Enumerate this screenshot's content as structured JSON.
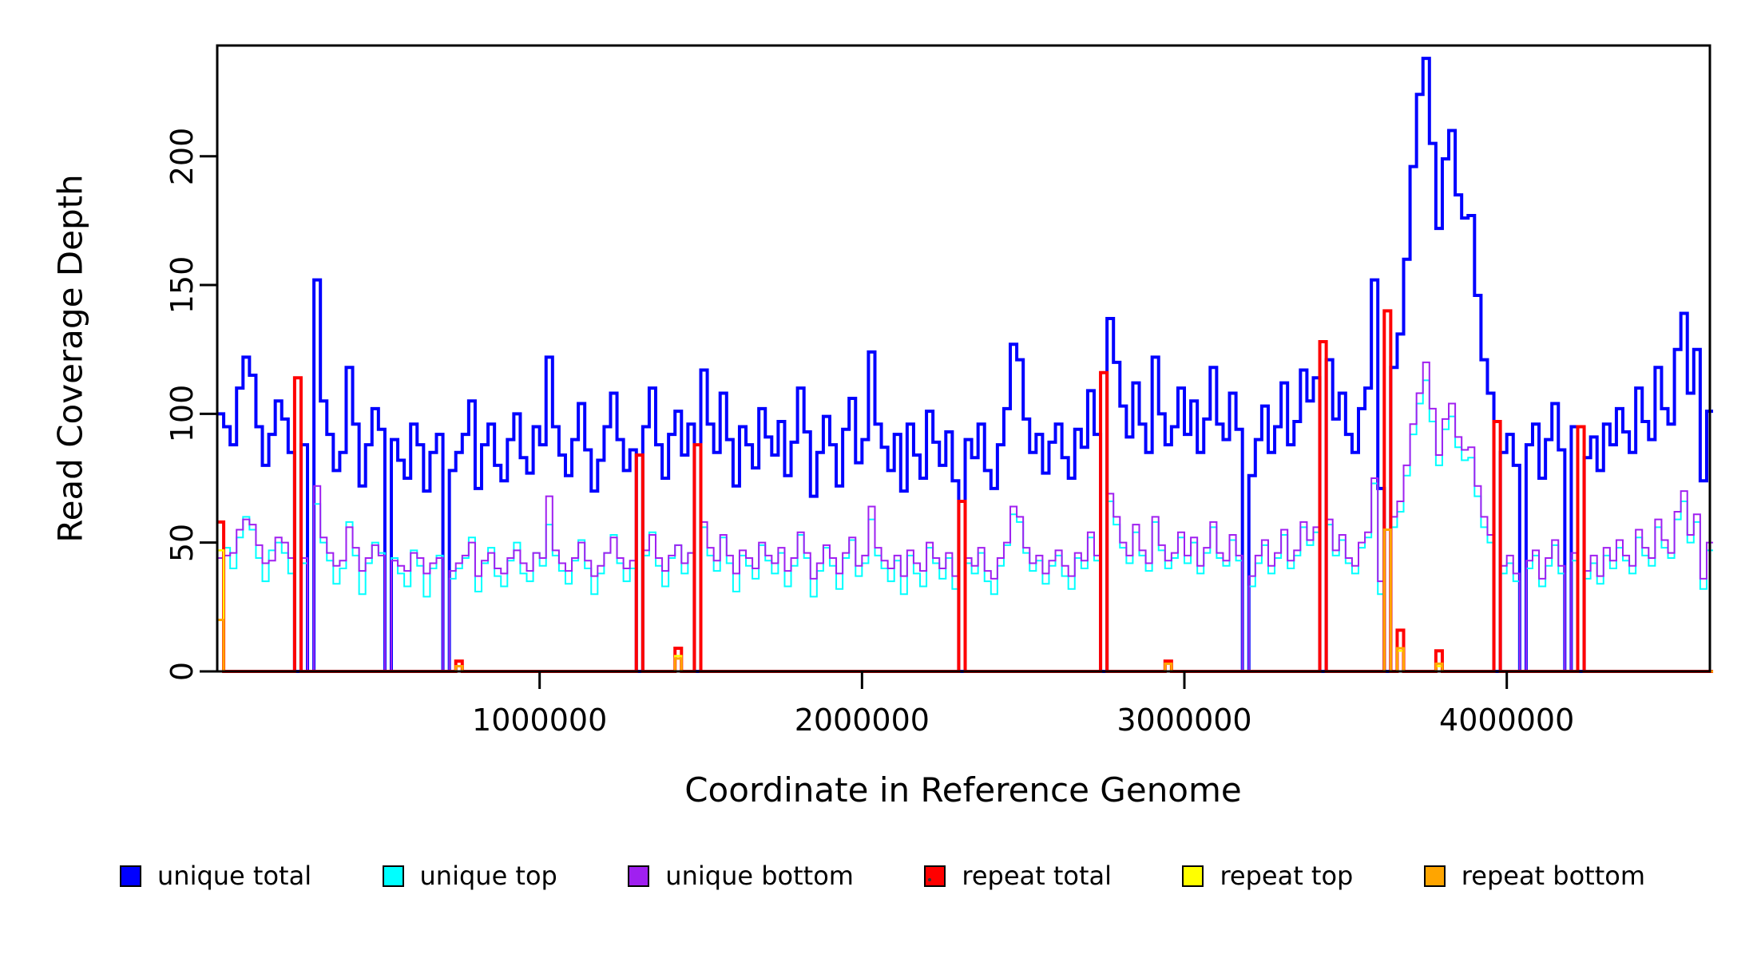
{
  "figure": {
    "background": "#FFFFFF",
    "xlabel": "Coordinate in Reference Genome",
    "ylabel": "Read Coverage Depth",
    "frame_color": "#000000",
    "x_ticks": [
      {
        "value": 1000000,
        "label": "1000000"
      },
      {
        "value": 2000000,
        "label": "2000000"
      },
      {
        "value": 3000000,
        "label": "3000000"
      },
      {
        "value": 4000000,
        "label": "4000000"
      }
    ],
    "y_ticks": [
      {
        "value": 0,
        "label": "0"
      },
      {
        "value": 50,
        "label": "50"
      },
      {
        "value": 100,
        "label": "100"
      },
      {
        "value": 150,
        "label": "150"
      },
      {
        "value": 200,
        "label": "200"
      }
    ],
    "legend": [
      {
        "label": "unique total",
        "color": "#0000FF"
      },
      {
        "label": "unique top",
        "color": "#00FFFF"
      },
      {
        "label": "unique bottom",
        "color": "#A020F0"
      },
      {
        "label": "repeat total",
        "color": "#FF0000"
      },
      {
        "label": "repeat top",
        "color": "#FFFF00"
      },
      {
        "label": "repeat bottom",
        "color": "#FFA500"
      }
    ]
  },
  "chart_data": {
    "type": "line",
    "step": true,
    "title": "",
    "xlabel": "Coordinate in Reference Genome",
    "ylabel": "Read Coverage Depth",
    "xlim": [
      0,
      4630000
    ],
    "ylim": [
      0,
      243
    ],
    "grid": false,
    "legend_position": "bottom",
    "x_start": 0,
    "bin_size": 20000,
    "n_bins": 232,
    "series": [
      {
        "name": "unique total",
        "color": "#0000FF",
        "width": 4,
        "values": [
          100,
          95,
          88,
          110,
          122,
          115,
          95,
          80,
          92,
          105,
          98,
          85,
          0,
          88,
          0,
          152,
          105,
          92,
          78,
          85,
          118,
          96,
          72,
          88,
          102,
          94,
          0,
          90,
          82,
          75,
          96,
          88,
          70,
          85,
          92,
          0,
          78,
          85,
          92,
          105,
          71,
          88,
          96,
          80,
          74,
          90,
          100,
          83,
          77,
          95,
          88,
          122,
          95,
          84,
          76,
          90,
          104,
          86,
          70,
          82,
          95,
          108,
          90,
          78,
          86,
          0,
          95,
          110,
          88,
          75,
          92,
          101,
          84,
          96,
          0,
          117,
          96,
          85,
          108,
          90,
          72,
          95,
          88,
          79,
          102,
          91,
          84,
          97,
          76,
          89,
          110,
          93,
          68,
          85,
          99,
          88,
          72,
          94,
          106,
          81,
          90,
          124,
          96,
          87,
          78,
          92,
          70,
          96,
          84,
          75,
          101,
          89,
          80,
          93,
          74,
          0,
          90,
          83,
          96,
          78,
          71,
          88,
          102,
          127,
          121,
          98,
          85,
          92,
          77,
          89,
          96,
          83,
          75,
          94,
          87,
          109,
          92,
          0,
          137,
          120,
          103,
          91,
          112,
          96,
          85,
          122,
          100,
          88,
          95,
          110,
          92,
          105,
          85,
          98,
          118,
          96,
          90,
          108,
          94,
          0,
          76,
          90,
          103,
          85,
          95,
          112,
          88,
          97,
          117,
          105,
          114,
          0,
          121,
          98,
          108,
          92,
          85,
          102,
          110,
          152,
          71,
          0,
          118,
          131,
          160,
          196,
          224,
          238,
          205,
          172,
          199,
          210,
          185,
          176,
          177,
          146,
          121,
          108,
          0,
          85,
          92,
          80,
          0,
          88,
          96,
          75,
          90,
          104,
          86,
          0,
          95,
          0,
          83,
          91,
          78,
          96,
          88,
          102,
          93,
          85,
          110,
          97,
          90,
          118,
          102,
          96,
          125,
          139,
          108,
          125,
          74,
          101
        ]
      },
      {
        "name": "unique top",
        "color": "#00FFFF",
        "width": 2,
        "values": [
          20,
          48,
          40,
          52,
          60,
          55,
          44,
          35,
          47,
          50,
          46,
          38,
          0,
          42,
          0,
          65,
          50,
          43,
          34,
          40,
          58,
          45,
          30,
          42,
          50,
          46,
          0,
          44,
          38,
          33,
          47,
          41,
          29,
          40,
          45,
          0,
          36,
          40,
          44,
          52,
          31,
          42,
          48,
          37,
          33,
          43,
          50,
          38,
          35,
          46,
          41,
          57,
          45,
          39,
          34,
          43,
          51,
          40,
          30,
          38,
          46,
          53,
          42,
          35,
          40,
          0,
          45,
          54,
          41,
          33,
          44,
          49,
          38,
          46,
          0,
          56,
          45,
          39,
          52,
          42,
          31,
          45,
          41,
          36,
          49,
          43,
          38,
          46,
          33,
          41,
          53,
          44,
          29,
          39,
          48,
          41,
          32,
          44,
          51,
          37,
          42,
          59,
          45,
          40,
          35,
          43,
          30,
          45,
          38,
          33,
          48,
          42,
          36,
          44,
          32,
          0,
          42,
          38,
          46,
          35,
          30,
          41,
          49,
          61,
          58,
          46,
          39,
          43,
          34,
          41,
          45,
          37,
          32,
          44,
          40,
          52,
          43,
          0,
          66,
          57,
          48,
          42,
          54,
          45,
          39,
          58,
          47,
          40,
          44,
          52,
          42,
          50,
          38,
          46,
          56,
          44,
          41,
          51,
          43,
          0,
          33,
          42,
          49,
          38,
          44,
          53,
          40,
          45,
          56,
          49,
          54,
          0,
          57,
          45,
          51,
          42,
          38,
          48,
          52,
          73,
          30,
          0,
          56,
          62,
          76,
          92,
          104,
          113,
          97,
          80,
          94,
          99,
          87,
          82,
          83,
          68,
          56,
          50,
          0,
          38,
          42,
          35,
          0,
          40,
          45,
          33,
          41,
          49,
          38,
          0,
          43,
          0,
          36,
          42,
          34,
          45,
          40,
          48,
          43,
          38,
          52,
          45,
          41,
          56,
          48,
          44,
          59,
          66,
          50,
          58,
          32,
          47
        ]
      },
      {
        "name": "unique bottom",
        "color": "#A020F0",
        "width": 2,
        "values": [
          44,
          45,
          46,
          55,
          59,
          57,
          49,
          42,
          43,
          52,
          50,
          44,
          0,
          44,
          0,
          72,
          52,
          46,
          41,
          43,
          56,
          48,
          39,
          44,
          49,
          45,
          0,
          43,
          41,
          39,
          46,
          44,
          38,
          42,
          44,
          0,
          39,
          42,
          45,
          50,
          37,
          43,
          46,
          40,
          38,
          44,
          47,
          42,
          39,
          46,
          44,
          68,
          47,
          42,
          39,
          44,
          50,
          43,
          37,
          41,
          46,
          52,
          44,
          40,
          43,
          0,
          47,
          53,
          44,
          39,
          45,
          49,
          42,
          46,
          0,
          58,
          48,
          43,
          53,
          45,
          38,
          47,
          44,
          40,
          50,
          45,
          42,
          48,
          39,
          44,
          54,
          46,
          36,
          42,
          49,
          44,
          38,
          46,
          52,
          41,
          45,
          64,
          48,
          43,
          40,
          45,
          37,
          47,
          42,
          39,
          50,
          44,
          40,
          46,
          37,
          0,
          44,
          41,
          48,
          39,
          36,
          44,
          50,
          64,
          60,
          48,
          42,
          45,
          38,
          43,
          47,
          41,
          37,
          46,
          43,
          54,
          45,
          0,
          69,
          60,
          50,
          45,
          57,
          47,
          42,
          60,
          49,
          43,
          46,
          54,
          45,
          52,
          41,
          48,
          58,
          46,
          43,
          53,
          45,
          0,
          37,
          45,
          51,
          41,
          46,
          55,
          43,
          47,
          58,
          51,
          56,
          0,
          59,
          47,
          53,
          44,
          41,
          50,
          54,
          75,
          35,
          0,
          60,
          66,
          80,
          96,
          108,
          120,
          102,
          84,
          98,
          104,
          91,
          86,
          87,
          72,
          60,
          53,
          0,
          41,
          45,
          38,
          0,
          43,
          47,
          36,
          44,
          51,
          41,
          0,
          46,
          0,
          39,
          45,
          37,
          48,
          43,
          51,
          45,
          41,
          55,
          48,
          44,
          59,
          51,
          46,
          62,
          70,
          53,
          61,
          36,
          50
        ]
      },
      {
        "name": "repeat total",
        "color": "#FF0000",
        "width": 4,
        "sparse": {
          "0": 58,
          "12": 114,
          "37": 4,
          "65": 84,
          "71": 9,
          "74": 88,
          "115": 66,
          "137": 116,
          "147": 4,
          "171": 128,
          "181": 140,
          "183": 16,
          "189": 8,
          "198": 97,
          "211": 95
        }
      },
      {
        "name": "repeat top",
        "color": "#FFFF00",
        "width": 2.5,
        "sparse": {
          "0": 47,
          "71": 6,
          "183": 8,
          "189": 2
        }
      },
      {
        "name": "repeat bottom",
        "color": "#FFA500",
        "width": 3,
        "sparse": {
          "0": 20,
          "37": 2,
          "71": 5,
          "147": 3,
          "181": 55,
          "183": 9,
          "189": 3
        }
      }
    ]
  }
}
